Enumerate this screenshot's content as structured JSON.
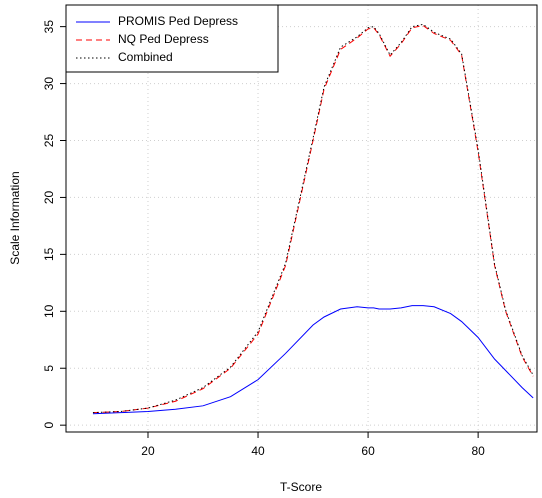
{
  "chart_data": {
    "type": "line",
    "x_label": "T-Score",
    "y_label": "Scale Information",
    "x": [
      10,
      15,
      20,
      25,
      30,
      35,
      40,
      45,
      50,
      52,
      55,
      58,
      60,
      61,
      62,
      64,
      66,
      68,
      70,
      72,
      75,
      77,
      80,
      83,
      85,
      88,
      90
    ],
    "series": [
      {
        "name": "PROMIS Ped Depress",
        "color": "#0000ff",
        "dash": "solid",
        "values": [
          1.0,
          1.1,
          1.2,
          1.4,
          1.7,
          2.5,
          4.0,
          6.3,
          8.8,
          9.5,
          10.2,
          10.4,
          10.3,
          10.3,
          10.2,
          10.2,
          10.3,
          10.5,
          10.5,
          10.4,
          9.8,
          9.1,
          7.7,
          5.8,
          4.8,
          3.3,
          2.4
        ]
      },
      {
        "name": "NQ Ped Depress",
        "color": "#ff0000",
        "dash": "dashed",
        "values": [
          1.1,
          1.2,
          1.5,
          2.1,
          3.2,
          5.0,
          8.0,
          14.0,
          25.0,
          29.5,
          33.0,
          34.0,
          34.8,
          34.9,
          34.3,
          32.4,
          33.5,
          34.9,
          35.1,
          34.4,
          33.8,
          32.5,
          24.0,
          14.0,
          10.0,
          6.0,
          4.3
        ]
      },
      {
        "name": "Combined",
        "color": "#000000",
        "dash": "dotted",
        "values": [
          1.1,
          1.2,
          1.5,
          2.2,
          3.3,
          5.1,
          8.2,
          14.2,
          25.2,
          29.7,
          33.2,
          34.1,
          34.9,
          35.0,
          34.4,
          32.5,
          33.6,
          35.0,
          35.2,
          34.5,
          33.9,
          32.6,
          24.2,
          14.1,
          10.1,
          6.1,
          4.4
        ]
      }
    ],
    "xlim": [
      5.1,
      90.7
    ],
    "ylim": [
      -0.6,
      36.9
    ],
    "xticks": [
      20,
      40,
      60,
      80
    ],
    "yticks": [
      0,
      5,
      10,
      15,
      20,
      25,
      30,
      35
    ],
    "grid": true,
    "legend": "top-left"
  }
}
